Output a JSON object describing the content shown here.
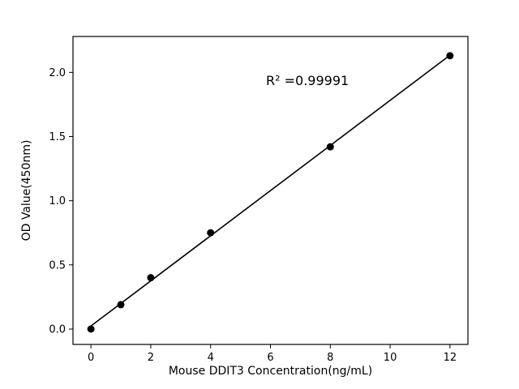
{
  "figure": {
    "background_color": "#ffffff",
    "foreground_color": "#000000"
  },
  "chart_data": {
    "type": "scatter",
    "title": "",
    "xlabel": "Mouse DDIT3 Concentration(ng/mL)",
    "ylabel": "OD Value(450nm)",
    "annotation": "R² =0.99991",
    "x": [
      0,
      1,
      2,
      4,
      8,
      12
    ],
    "y": [
      0.0,
      0.19,
      0.4,
      0.75,
      1.42,
      2.13
    ],
    "fit": "linear",
    "xticks": [
      0,
      2,
      4,
      6,
      8,
      10,
      12
    ],
    "yticks": [
      0.0,
      0.5,
      1.0,
      1.5,
      2.0
    ],
    "xlim": [
      -0.6,
      12.6
    ],
    "ylim": [
      -0.12,
      2.28
    ],
    "grid": false,
    "legend": "none",
    "marker_color": "#000000",
    "line_color": "#000000"
  }
}
